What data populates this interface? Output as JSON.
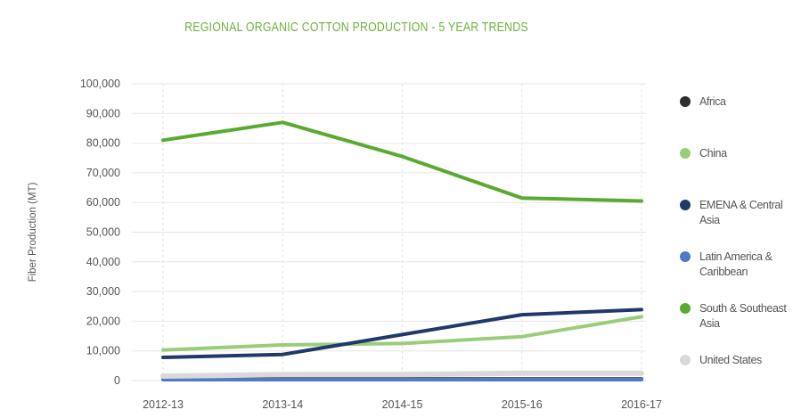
{
  "chart_data": {
    "type": "line",
    "title": "REGIONAL ORGANIC COTTON PRODUCTION - 5 YEAR TRENDS",
    "ylabel": "Fiber Production (MT)",
    "xlabel": "",
    "categories": [
      "2012-13",
      "2013-14",
      "2014-15",
      "2015-16",
      "2016-17"
    ],
    "ylim": [
      0,
      100000
    ],
    "yticks": [
      "100,000",
      "90,000",
      "80,000",
      "70,000",
      "60,000",
      "50,000",
      "40,000",
      "30,000",
      "20,000",
      "10,000",
      "0"
    ],
    "grid": true,
    "legend_position": "right",
    "series": [
      {
        "name": "Africa",
        "color": "#2d2d2d",
        "values": [
          500,
          500,
          500,
          500,
          500
        ]
      },
      {
        "name": "China",
        "color": "#9acd7a",
        "values": [
          10300,
          12000,
          12500,
          14800,
          21500
        ]
      },
      {
        "name": "EMENA & Central Asia",
        "color": "#1f3a68",
        "values": [
          7800,
          8800,
          15500,
          22200,
          23900
        ]
      },
      {
        "name": "Latin America & Caribbean",
        "color": "#4f7ac7",
        "values": [
          300,
          300,
          300,
          300,
          300
        ]
      },
      {
        "name": "South & Southeast Asia",
        "color": "#5aaa32",
        "values": [
          81000,
          87000,
          75500,
          61500,
          60500
        ]
      },
      {
        "name": "United States",
        "color": "#d9d9d9",
        "values": [
          1500,
          2000,
          2000,
          2500,
          2500
        ]
      }
    ]
  }
}
